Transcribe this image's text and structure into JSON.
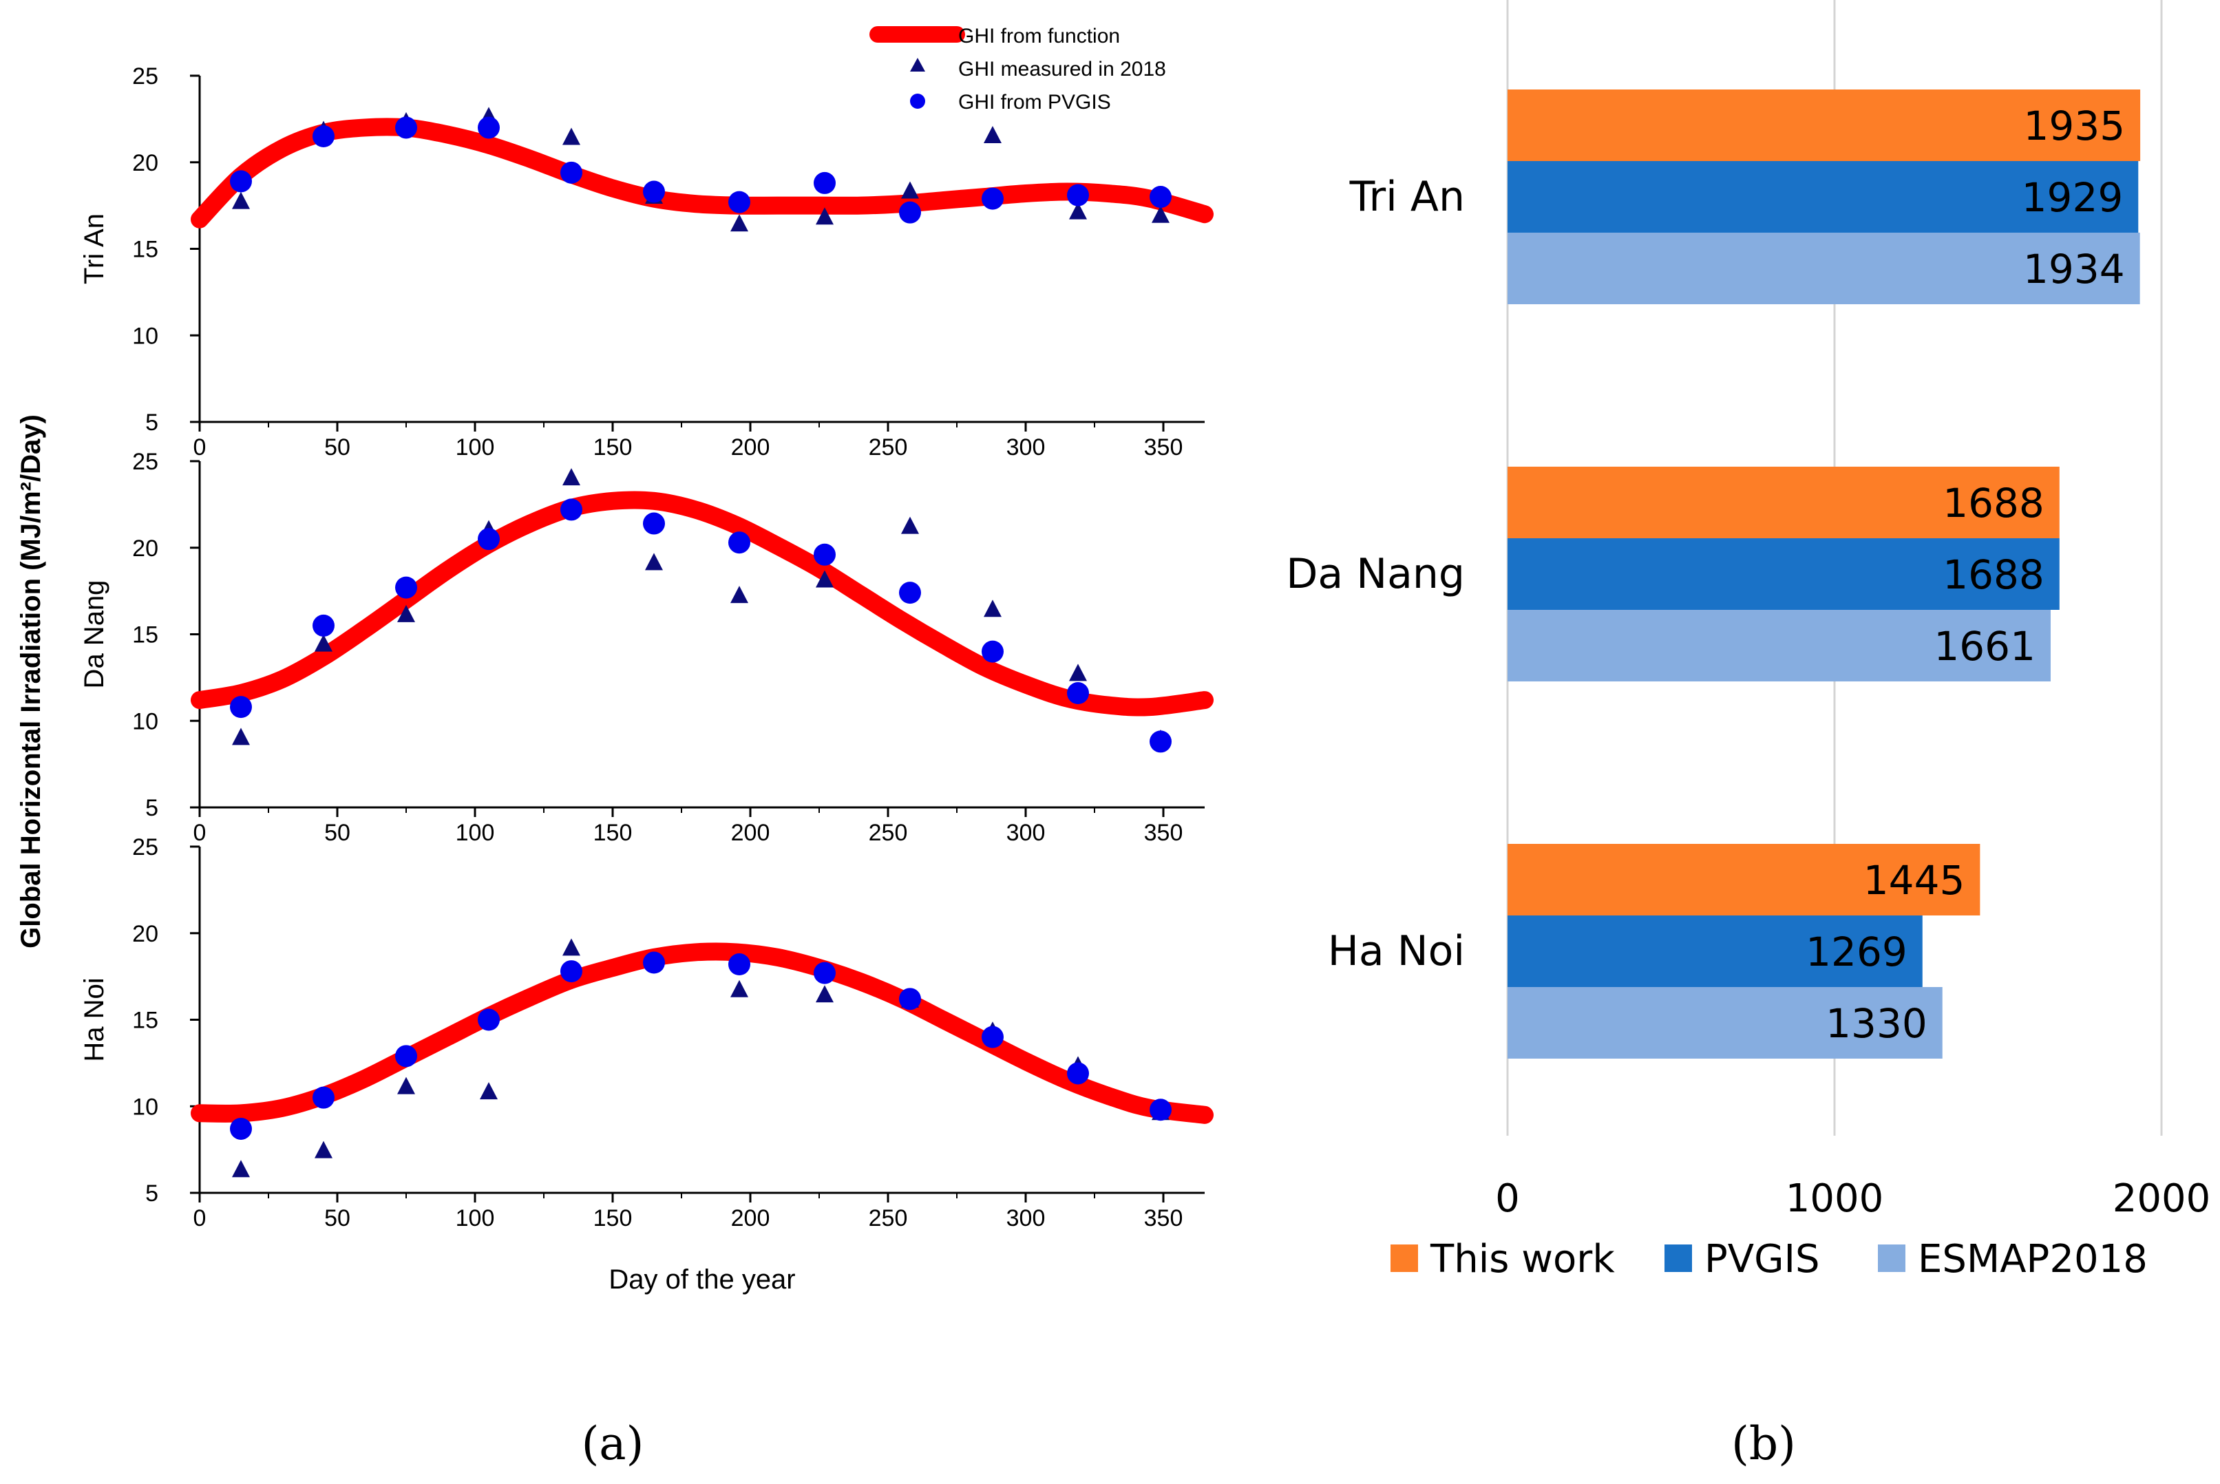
{
  "panel_a": {
    "caption": "(a)",
    "ylabel": "Global Horizontal Irradiation (MJ/m²/Day)",
    "xlabel": "Day of the year",
    "legend": [
      {
        "key": "fit",
        "label": "GHI from function"
      },
      {
        "key": "measured",
        "label": "GHI measured in 2018"
      },
      {
        "key": "pvgis",
        "label": "GHI from PVGIS"
      }
    ],
    "colors": {
      "fit": "#ff0000",
      "marker": "#0000ee",
      "triangle": "#0a0a7a"
    },
    "xticks": [
      "0",
      "50",
      "100",
      "150",
      "200",
      "250",
      "300",
      "350"
    ],
    "yticks": [
      "5",
      "10",
      "15",
      "20",
      "25"
    ]
  },
  "panel_b": {
    "caption": "(b)",
    "colors": {
      "This work": "#fd7e27",
      "PVGIS": "#1a72c7",
      "ESMAP2018": "#86ade0"
    },
    "xticks": [
      "0",
      "1000",
      "2000"
    ]
  },
  "chart_data": [
    {
      "type": "line",
      "panel": "a",
      "title": "Tri An",
      "xlabel": "Day of the year",
      "ylabel": "Global Horizontal Irradiation (MJ/m²/Day)",
      "xlim": [
        0,
        365
      ],
      "ylim": [
        5,
        25
      ],
      "fit_curve": [
        [
          0,
          16.7
        ],
        [
          15,
          19.2
        ],
        [
          30,
          20.8
        ],
        [
          45,
          21.7
        ],
        [
          60,
          22.0
        ],
        [
          75,
          22.0
        ],
        [
          90,
          21.6
        ],
        [
          105,
          21.0
        ],
        [
          120,
          20.2
        ],
        [
          135,
          19.3
        ],
        [
          150,
          18.5
        ],
        [
          165,
          17.9
        ],
        [
          180,
          17.6
        ],
        [
          195,
          17.5
        ],
        [
          210,
          17.5
        ],
        [
          225,
          17.5
        ],
        [
          240,
          17.5
        ],
        [
          255,
          17.6
        ],
        [
          270,
          17.8
        ],
        [
          285,
          18.0
        ],
        [
          300,
          18.2
        ],
        [
          315,
          18.3
        ],
        [
          330,
          18.2
        ],
        [
          345,
          17.9
        ],
        [
          365,
          17.0
        ]
      ],
      "series": [
        {
          "name": "GHI measured in 2018",
          "marker": "triangle",
          "x": [
            15,
            45,
            75,
            105,
            135,
            165,
            196,
            227,
            258,
            288,
            319,
            349
          ],
          "y": [
            17.7,
            21.8,
            22.3,
            22.6,
            21.4,
            18.0,
            16.4,
            16.8,
            18.3,
            21.5,
            17.1,
            16.9
          ]
        },
        {
          "name": "GHI from PVGIS",
          "marker": "circle",
          "x": [
            15,
            45,
            75,
            105,
            135,
            165,
            196,
            227,
            258,
            288,
            319,
            349
          ],
          "y": [
            18.9,
            21.5,
            22.0,
            22.0,
            19.4,
            18.3,
            17.7,
            18.8,
            17.1,
            17.9,
            18.1,
            18.0
          ]
        }
      ]
    },
    {
      "type": "line",
      "panel": "a",
      "title": "Da Nang",
      "xlabel": "Day of the year",
      "ylabel": "Global Horizontal Irradiation (MJ/m²/Day)",
      "xlim": [
        0,
        365
      ],
      "ylim": [
        5,
        25
      ],
      "fit_curve": [
        [
          0,
          11.2
        ],
        [
          15,
          11.6
        ],
        [
          30,
          12.4
        ],
        [
          45,
          13.7
        ],
        [
          60,
          15.3
        ],
        [
          75,
          17.0
        ],
        [
          90,
          18.7
        ],
        [
          105,
          20.2
        ],
        [
          120,
          21.4
        ],
        [
          135,
          22.3
        ],
        [
          150,
          22.7
        ],
        [
          165,
          22.7
        ],
        [
          180,
          22.2
        ],
        [
          195,
          21.3
        ],
        [
          210,
          20.1
        ],
        [
          225,
          18.8
        ],
        [
          240,
          17.3
        ],
        [
          255,
          15.8
        ],
        [
          270,
          14.4
        ],
        [
          285,
          13.1
        ],
        [
          300,
          12.1
        ],
        [
          315,
          11.3
        ],
        [
          330,
          10.9
        ],
        [
          345,
          10.8
        ],
        [
          365,
          11.2
        ]
      ],
      "series": [
        {
          "name": "GHI measured in 2018",
          "marker": "triangle",
          "x": [
            15,
            45,
            75,
            105,
            135,
            165,
            196,
            227,
            258,
            288,
            319,
            349
          ],
          "y": [
            9.0,
            14.4,
            16.1,
            21.0,
            24.0,
            19.1,
            17.2,
            18.1,
            21.2,
            16.4,
            12.7,
            8.9
          ]
        },
        {
          "name": "GHI from PVGIS",
          "marker": "circle",
          "x": [
            15,
            45,
            75,
            105,
            135,
            165,
            196,
            227,
            258,
            288,
            319,
            349
          ],
          "y": [
            10.8,
            15.5,
            17.7,
            20.5,
            22.2,
            21.4,
            20.3,
            19.6,
            17.4,
            14.0,
            11.6,
            8.8
          ]
        }
      ]
    },
    {
      "type": "line",
      "panel": "a",
      "title": "Ha Noi",
      "xlabel": "Day of the year",
      "ylabel": "Global Horizontal Irradiation (MJ/m²/Day)",
      "xlim": [
        0,
        365
      ],
      "ylim": [
        5,
        25
      ],
      "fit_curve": [
        [
          0,
          9.6
        ],
        [
          15,
          9.6
        ],
        [
          30,
          9.9
        ],
        [
          45,
          10.6
        ],
        [
          60,
          11.6
        ],
        [
          75,
          12.8
        ],
        [
          90,
          14.0
        ],
        [
          105,
          15.2
        ],
        [
          120,
          16.3
        ],
        [
          135,
          17.3
        ],
        [
          150,
          18.0
        ],
        [
          165,
          18.6
        ],
        [
          180,
          18.9
        ],
        [
          195,
          18.9
        ],
        [
          210,
          18.6
        ],
        [
          225,
          18.0
        ],
        [
          240,
          17.2
        ],
        [
          255,
          16.2
        ],
        [
          270,
          15.0
        ],
        [
          285,
          13.8
        ],
        [
          300,
          12.6
        ],
        [
          315,
          11.5
        ],
        [
          330,
          10.6
        ],
        [
          345,
          9.9
        ],
        [
          365,
          9.5
        ]
      ],
      "series": [
        {
          "name": "GHI measured in 2018",
          "marker": "triangle",
          "x": [
            15,
            45,
            75,
            105,
            135,
            165,
            196,
            227,
            258,
            288,
            319,
            349
          ],
          "y": [
            6.3,
            7.4,
            11.1,
            10.8,
            19.1,
            18.3,
            16.7,
            16.4,
            16.1,
            14.3,
            12.3,
            9.6
          ]
        },
        {
          "name": "GHI from PVGIS",
          "marker": "circle",
          "x": [
            15,
            45,
            75,
            105,
            135,
            165,
            196,
            227,
            258,
            288,
            319,
            349
          ],
          "y": [
            8.7,
            10.5,
            12.9,
            15.0,
            17.8,
            18.3,
            18.2,
            17.7,
            16.2,
            14.0,
            11.9,
            9.8
          ]
        }
      ]
    },
    {
      "type": "bar",
      "panel": "b",
      "orientation": "horizontal",
      "categories": [
        "Tri An",
        "Da Nang",
        "Ha Noi"
      ],
      "series": [
        {
          "name": "This work",
          "values": [
            1935,
            1688,
            1445
          ]
        },
        {
          "name": "PVGIS",
          "values": [
            1929,
            1688,
            1269
          ]
        },
        {
          "name": "ESMAP2018",
          "values": [
            1934,
            1661,
            1330
          ]
        }
      ],
      "xlim": [
        0,
        2000
      ],
      "legend_position": "bottom"
    }
  ]
}
